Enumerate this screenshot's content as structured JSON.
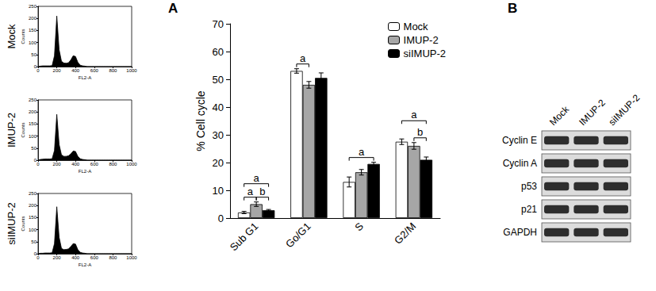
{
  "panel_labels": [
    "A",
    "B"
  ],
  "chart_data": [
    {
      "type": "area",
      "title": "Mock",
      "x_label": "FL2-A",
      "y_label": "Counts",
      "color": "#000000",
      "grid": false,
      "xlim": [
        0,
        1000
      ],
      "xticks": [
        0,
        200,
        400,
        600,
        800,
        1000
      ],
      "ylim": [
        0,
        250
      ],
      "yticks": [
        0,
        50,
        100,
        150,
        200,
        250
      ],
      "x": [
        0,
        25,
        50,
        75,
        100,
        125,
        150,
        175,
        200,
        225,
        250,
        275,
        300,
        325,
        350,
        375,
        400,
        425,
        450,
        475,
        500,
        525,
        550,
        575,
        600,
        625,
        650,
        675,
        700,
        725,
        750,
        775,
        800,
        825,
        850,
        875,
        900,
        925,
        950,
        975,
        1000
      ],
      "values": [
        0,
        2,
        3,
        3,
        3,
        3,
        4,
        45,
        210,
        70,
        22,
        15,
        14,
        16,
        28,
        45,
        42,
        18,
        6,
        3,
        2,
        0,
        0,
        0,
        0,
        0,
        0,
        0,
        0,
        0,
        0,
        0,
        0,
        0,
        0,
        0,
        0,
        0,
        0,
        0,
        0
      ]
    },
    {
      "type": "area",
      "title": "IMUP-2",
      "x_label": "FL2-A",
      "y_label": "Counts",
      "color": "#000000",
      "grid": false,
      "xlim": [
        0,
        1000
      ],
      "xticks": [
        0,
        200,
        400,
        600,
        800,
        1000
      ],
      "ylim": [
        0,
        250
      ],
      "yticks": [
        0,
        50,
        100,
        150,
        200,
        250
      ],
      "x": [
        0,
        25,
        50,
        75,
        100,
        125,
        150,
        175,
        200,
        225,
        250,
        275,
        300,
        325,
        350,
        375,
        400,
        425,
        450,
        475,
        500,
        525,
        550,
        575,
        600,
        625,
        650,
        675,
        700,
        725,
        750,
        775,
        800,
        825,
        850,
        875,
        900,
        925,
        950,
        975,
        1000
      ],
      "values": [
        0,
        3,
        4,
        5,
        5,
        5,
        6,
        40,
        190,
        65,
        22,
        16,
        16,
        18,
        26,
        38,
        36,
        16,
        6,
        3,
        2,
        0,
        0,
        0,
        0,
        0,
        0,
        0,
        0,
        0,
        0,
        0,
        0,
        0,
        0,
        0,
        0,
        0,
        0,
        0,
        0
      ]
    },
    {
      "type": "area",
      "title": "siIMUP-2",
      "x_label": "FL2-A",
      "y_label": "Counts",
      "color": "#000000",
      "grid": false,
      "xlim": [
        0,
        1000
      ],
      "xticks": [
        0,
        200,
        400,
        600,
        800,
        1000
      ],
      "ylim": [
        0,
        250
      ],
      "yticks": [
        0,
        50,
        100,
        150,
        200,
        250
      ],
      "x": [
        0,
        25,
        50,
        75,
        100,
        125,
        150,
        175,
        200,
        225,
        250,
        275,
        300,
        325,
        350,
        375,
        400,
        425,
        450,
        475,
        500,
        525,
        550,
        575,
        600,
        625,
        650,
        675,
        700,
        725,
        750,
        775,
        800,
        825,
        850,
        875,
        900,
        925,
        950,
        975,
        1000
      ],
      "values": [
        0,
        2,
        2,
        3,
        3,
        3,
        4,
        42,
        195,
        68,
        22,
        17,
        18,
        20,
        30,
        42,
        40,
        17,
        6,
        3,
        2,
        0,
        0,
        0,
        0,
        0,
        0,
        0,
        0,
        0,
        0,
        0,
        0,
        0,
        0,
        0,
        0,
        0,
        0,
        0,
        0
      ]
    },
    {
      "type": "bar",
      "y_label": "% Cell cycle",
      "grid": false,
      "legend": "top-right",
      "categories": [
        "Sub G1",
        "Go/G1",
        "S",
        "G2/M"
      ],
      "ylim": [
        0,
        70
      ],
      "yticks": [
        0,
        10,
        20,
        30,
        40,
        50,
        60,
        70
      ],
      "series": [
        {
          "name": "Mock",
          "color": "#ffffff",
          "values": [
            2,
            53,
            13,
            27.5
          ],
          "errors": [
            0.4,
            0.8,
            1.8,
            1
          ]
        },
        {
          "name": "IMUP-2",
          "color": "#a6a6a6",
          "values": [
            5,
            48,
            16.5,
            26
          ],
          "errors": [
            0.8,
            1.2,
            1,
            1.2
          ]
        },
        {
          "name": "siIMUP-2",
          "color": "#000000",
          "values": [
            2.8,
            50.5,
            19.5,
            21
          ],
          "errors": [
            0.3,
            1.8,
            0.6,
            1
          ]
        }
      ],
      "significance": [
        {
          "category": "Sub G1",
          "from": "Mock",
          "to": "IMUP-2",
          "label": "a"
        },
        {
          "category": "Sub G1",
          "from": "IMUP-2",
          "to": "siIMUP-2",
          "label": "b"
        },
        {
          "category": "Sub G1",
          "from": "Mock",
          "to": "siIMUP-2",
          "label": "a"
        },
        {
          "category": "Go/G1",
          "from": "Mock",
          "to": "IMUP-2",
          "label": "a"
        },
        {
          "category": "S",
          "from": "Mock",
          "to": "siIMUP-2",
          "label": "a"
        },
        {
          "category": "G2/M",
          "from": "IMUP-2",
          "to": "siIMUP-2",
          "label": "b"
        },
        {
          "category": "G2/M",
          "from": "Mock",
          "to": "siIMUP-2",
          "label": "a"
        }
      ]
    }
  ],
  "blot": {
    "columns": [
      "Mock",
      "IMUP-2",
      "siIMUP-2"
    ],
    "rows": [
      "Cyclin E",
      "Cyclin A",
      "p53",
      "p21",
      "GAPDH"
    ]
  }
}
